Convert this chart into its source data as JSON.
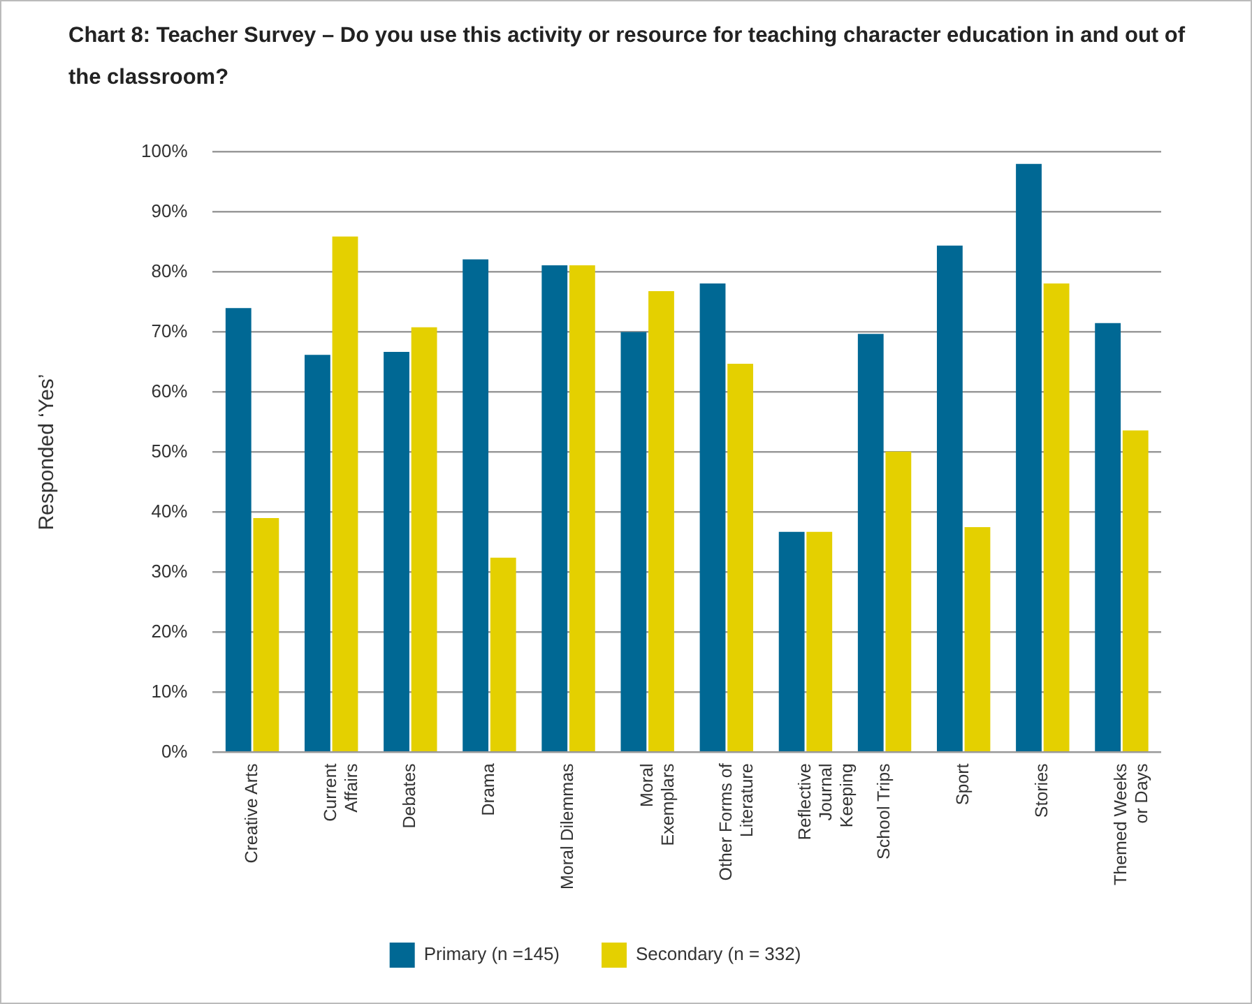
{
  "chart_data": {
    "type": "bar",
    "title": "Chart 8: Teacher Survey – Do you use this activity or resource for teaching character education in and out of the classroom?",
    "ylabel": "Responded ‘Yes’",
    "categories": [
      "Creative Arts",
      "Current Affairs",
      "Debates",
      "Drama",
      "Moral Dilemmas",
      "Moral Exemplars",
      "Other Forms of Literature",
      "Reflective Journal Keeping",
      "School Trips",
      "Sport",
      "Stories",
      "Themed Weeks or Days"
    ],
    "series": [
      {
        "name": "Primary (n =145)",
        "color": "#006894",
        "values": [
          74,
          66.2,
          66.7,
          82.1,
          81.1,
          70,
          78.1,
          36.7,
          69.7,
          84.4,
          98,
          71.5
        ]
      },
      {
        "name": "Secondary (n = 332)",
        "color": "#e4d000",
        "values": [
          39,
          85.9,
          70.8,
          32.4,
          81.1,
          76.8,
          64.7,
          36.7,
          50.1,
          37.5,
          78.1,
          53.6
        ]
      }
    ],
    "ylim": [
      0,
      100
    ],
    "yticks": [
      {
        "value": 0,
        "label": "0%"
      },
      {
        "value": 10,
        "label": "10%"
      },
      {
        "value": 20,
        "label": "20%"
      },
      {
        "value": 30,
        "label": "30%"
      },
      {
        "value": 40,
        "label": "40%"
      },
      {
        "value": 50,
        "label": "50%"
      },
      {
        "value": 60,
        "label": "60%"
      },
      {
        "value": 70,
        "label": "70%"
      },
      {
        "value": 80,
        "label": "80%"
      },
      {
        "value": 90,
        "label": "90%"
      },
      {
        "value": 100,
        "label": "100%"
      }
    ],
    "grid": "y",
    "legend": "bottom"
  }
}
